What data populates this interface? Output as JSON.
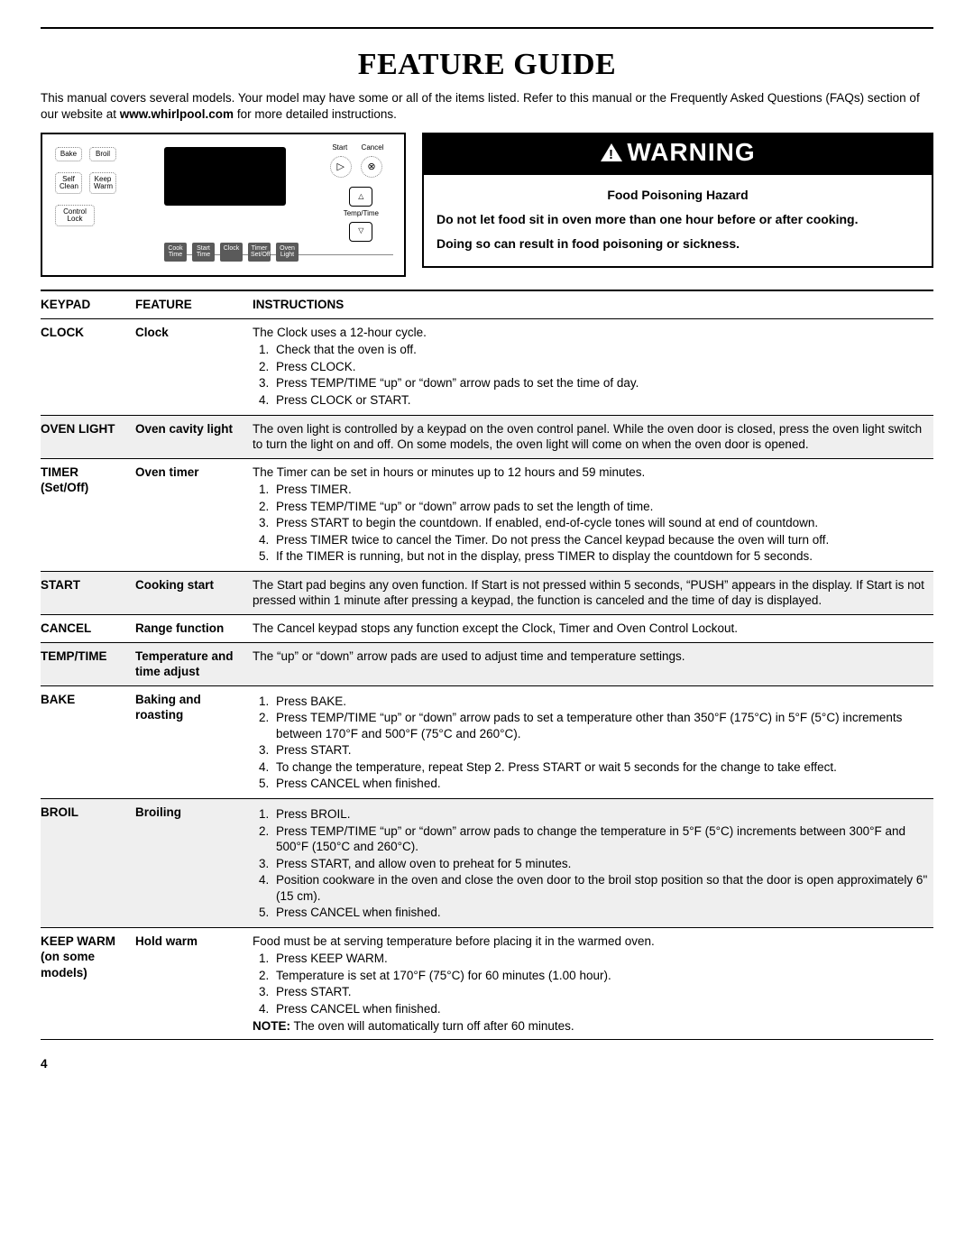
{
  "title": "FEATURE GUIDE",
  "intro_pre": "This manual covers several models. Your model may have some or all of the items listed. Refer to this manual or the Frequently Asked Questions (FAQs) section of our website at ",
  "intro_bold": "www.whirlpool.com",
  "intro_post": " for more detailed instructions.",
  "warning": {
    "bar": "WARNING",
    "hazard": "Food Poisoning Hazard",
    "line1": "Do not let food sit in oven more than one hour before or after cooking.",
    "line2": "Doing so can result in food poisoning or sickness."
  },
  "panel": {
    "bake": "Bake",
    "broil": "Broil",
    "self_clean": "Self\nClean",
    "keep_warm": "Keep\nWarm",
    "control_lock": "Control\nLock",
    "cook_time": "Cook\nTime",
    "start_time": "Start\nTime",
    "clock": "Clock",
    "timer": "Timer\nSet/Off",
    "oven_light": "Oven\nLight",
    "start": "Start",
    "cancel": "Cancel",
    "temptime": "Temp/Time"
  },
  "headers": {
    "keypad": "KEYPAD",
    "feature": "FEATURE",
    "instructions": "INSTRUCTIONS"
  },
  "rows": [
    {
      "keypad": "CLOCK",
      "feature": "Clock",
      "intro": "The Clock uses a 12-hour cycle.",
      "steps": [
        "Check that the oven is off.",
        "Press CLOCK.",
        "Press TEMP/TIME “up” or “down” arrow pads to set the time of day.",
        "Press CLOCK or START."
      ]
    },
    {
      "shaded": true,
      "keypad": "OVEN LIGHT",
      "feature": "Oven cavity light",
      "text": "The oven light is controlled by a keypad on the oven control panel. While the oven door is closed, press the oven light switch to turn the light on and off. On some models, the oven light will come on when the oven door is opened."
    },
    {
      "keypad": "TIMER (Set/Off)",
      "feature": "Oven timer",
      "intro": "The Timer can be set in hours or minutes up to 12 hours and 59 minutes.",
      "steps": [
        "Press TIMER.",
        "Press TEMP/TIME “up” or “down” arrow pads to set the length of time.",
        "Press START to begin the countdown. If enabled, end-of-cycle tones will sound at end of countdown.",
        "Press TIMER twice to cancel the Timer. Do not press the Cancel keypad because the oven will turn off.",
        "If the TIMER is running, but not in the display, press TIMER to display the countdown for 5 seconds."
      ]
    },
    {
      "shaded": true,
      "keypad": "START",
      "feature": "Cooking start",
      "text": "The Start pad begins any oven function. If Start is not pressed within 5 seconds, “PUSH” appears in the display. If Start is not pressed within 1 minute after pressing a keypad, the function is canceled and the time of day is displayed."
    },
    {
      "keypad": "CANCEL",
      "feature": "Range function",
      "text": "The Cancel keypad stops any function except the Clock, Timer and Oven Control Lockout."
    },
    {
      "shaded": true,
      "keypad": "TEMP/TIME",
      "feature": "Temperature and time adjust",
      "text": "The “up” or “down” arrow pads are used to adjust time and temperature settings."
    },
    {
      "keypad": "BAKE",
      "feature": "Baking and roasting",
      "steps": [
        "Press BAKE.",
        "Press TEMP/TIME “up” or “down” arrow pads to set a temperature other than 350°F (175°C) in 5°F (5°C) increments between 170°F and 500°F (75°C and 260°C).",
        "Press START.",
        "To change the temperature, repeat Step 2. Press START or wait 5 seconds for the change to take effect.",
        "Press CANCEL when finished."
      ]
    },
    {
      "shaded": true,
      "keypad": "BROIL",
      "feature": "Broiling",
      "steps": [
        "Press BROIL.",
        "Press TEMP/TIME “up” or “down” arrow pads to change the temperature in 5°F (5°C) increments between 300°F and 500°F (150°C and 260°C).",
        "Press START, and allow oven to preheat for 5 minutes.",
        "Position cookware in the oven and close the oven door to the broil stop position so that the door is open approximately 6\" (15 cm).",
        "Press CANCEL when finished."
      ]
    },
    {
      "keypad": "KEEP WARM (on some models)",
      "feature": "Hold warm",
      "intro": "Food must be at serving temperature before placing it in the warmed oven.",
      "steps": [
        "Press KEEP WARM.",
        "Temperature is set at 170°F (75°C) for 60 minutes (1.00 hour).",
        "Press START.",
        "Press CANCEL when finished."
      ],
      "note_label": "NOTE:",
      "note": " The oven will automatically turn off after 60 minutes."
    }
  ],
  "page_number": "4"
}
